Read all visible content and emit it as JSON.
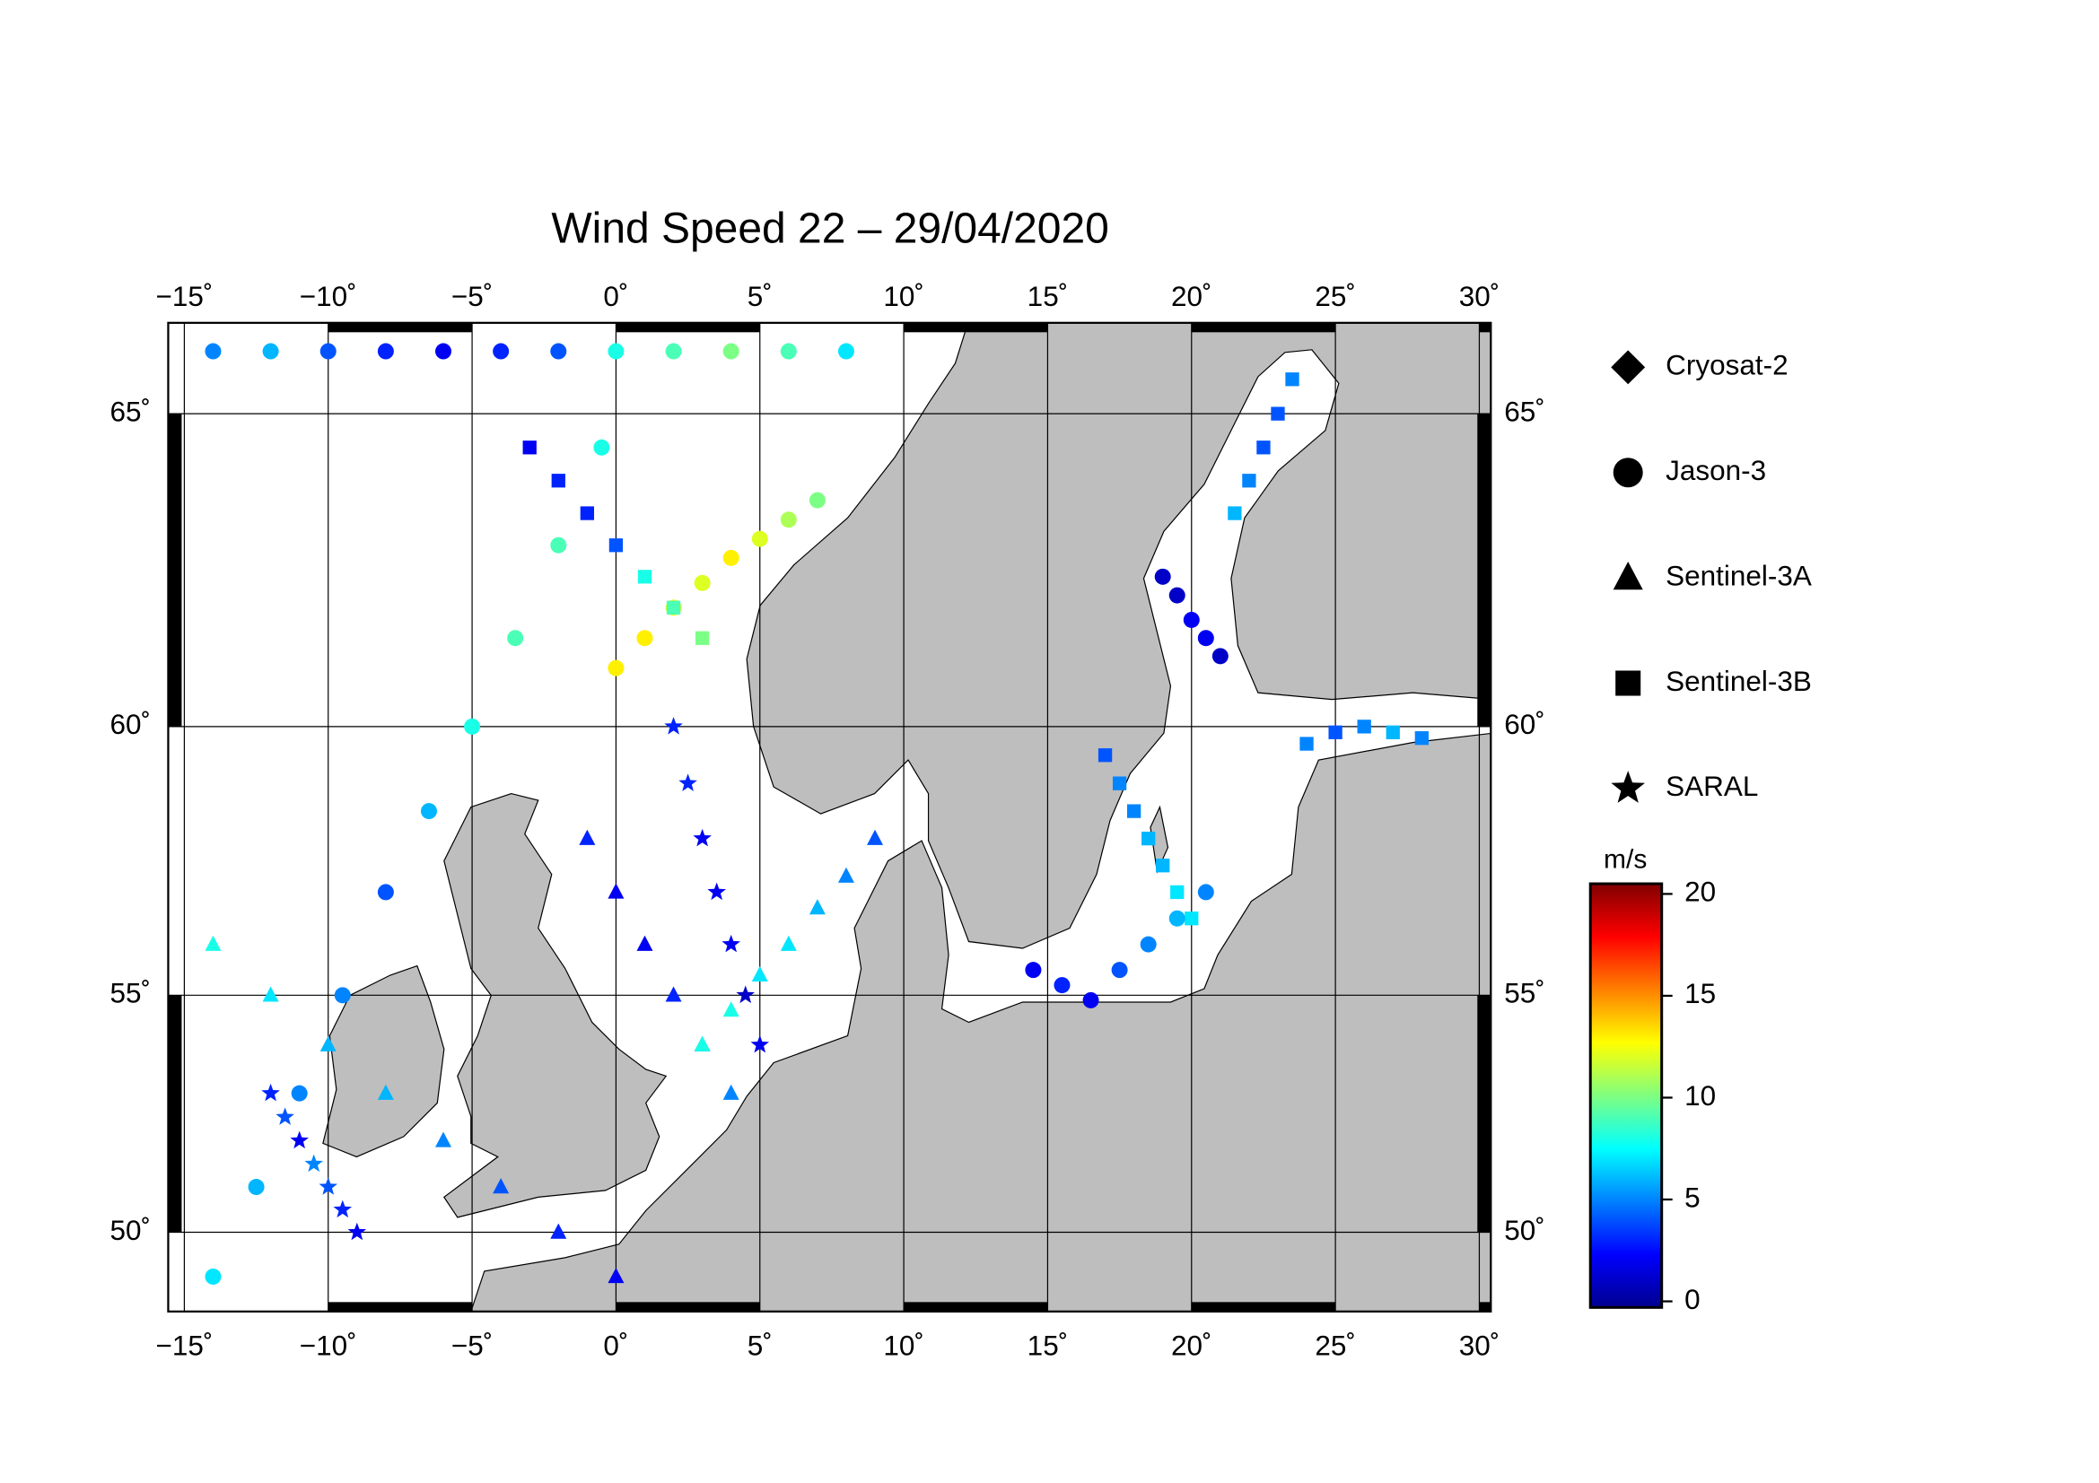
{
  "chart_data": {
    "type": "map",
    "title": "Wind Speed 22 – 29/04/2020",
    "xlim": [
      -15.56,
      30.4
    ],
    "ylim": [
      48.2,
      66.3
    ],
    "xticks": [
      {
        "value": -15,
        "label": "−15˚"
      },
      {
        "value": -10,
        "label": "−10˚"
      },
      {
        "value": -5,
        "label": "−5˚"
      },
      {
        "value": 0,
        "label": "0˚"
      },
      {
        "value": 5,
        "label": "5˚"
      },
      {
        "value": 10,
        "label": "10˚"
      },
      {
        "value": 15,
        "label": "15˚"
      },
      {
        "value": 20,
        "label": "20˚"
      },
      {
        "value": 25,
        "label": "25˚"
      },
      {
        "value": 30,
        "label": "30˚"
      }
    ],
    "yticks": [
      {
        "value": 50,
        "label": "50˚"
      },
      {
        "value": 55,
        "label": "55˚"
      },
      {
        "value": 60,
        "label": "60˚"
      },
      {
        "value": 65,
        "label": "65˚"
      }
    ],
    "grid": true,
    "series": [
      {
        "name": "Cryosat-2",
        "marker": "diamond"
      },
      {
        "name": "Jason-3",
        "marker": "circle"
      },
      {
        "name": "Sentinel-3A",
        "marker": "triangle"
      },
      {
        "name": "Sentinel-3B",
        "marker": "square"
      },
      {
        "name": "SARAL",
        "marker": "star"
      }
    ],
    "colorbar": {
      "label": "m/s",
      "ylim": [
        -0.3,
        20.5
      ],
      "yticks": [
        0,
        5,
        10,
        15,
        20
      ],
      "colormap": [
        "#00008f",
        "#0000ff",
        "#0080ff",
        "#00ffff",
        "#80ff80",
        "#ffff00",
        "#ff8000",
        "#ff0000",
        "#800000"
      ]
    },
    "tracks": [
      {
        "series": 1,
        "lon": [
          -14,
          -12.5,
          -11,
          -9.5,
          -8,
          -6.5,
          -5,
          -3.5,
          -2,
          -0.5
        ],
        "lat": [
          49,
          51,
          53,
          55,
          57,
          58.5,
          60,
          61.5,
          63,
          64.5
        ],
        "values": [
          7,
          6,
          5,
          5,
          4,
          6,
          8,
          9,
          9,
          8
        ]
      },
      {
        "series": 1,
        "lon": [
          0,
          1,
          2,
          3,
          4,
          5,
          6,
          7
        ],
        "lat": [
          61,
          61.5,
          62,
          62.4,
          62.8,
          63.1,
          63.4,
          63.7
        ],
        "values": [
          13,
          13,
          12,
          12,
          13,
          12,
          11,
          10
        ]
      },
      {
        "series": 1,
        "lon": [
          -14,
          -12,
          -10,
          -8,
          -6,
          -4,
          -2,
          0,
          2,
          4,
          6,
          8
        ],
        "lat": [
          65.9,
          65.9,
          65.9,
          65.9,
          65.9,
          65.9,
          65.9,
          65.9,
          65.9,
          65.9,
          65.9,
          65.9
        ],
        "values": [
          5,
          6,
          4,
          3,
          2,
          3,
          4,
          8,
          9,
          10,
          9,
          7
        ]
      },
      {
        "series": 2,
        "lon": [
          -14,
          -12,
          -10,
          -8,
          -6,
          -4,
          -2,
          0
        ],
        "lat": [
          56,
          55,
          54,
          53,
          52,
          51,
          50,
          49
        ],
        "values": [
          8,
          7,
          6,
          6,
          5,
          4,
          3,
          2
        ]
      },
      {
        "series": 2,
        "lon": [
          -1,
          0,
          1,
          2,
          3,
          4
        ],
        "lat": [
          58,
          57,
          56,
          55,
          54,
          53
        ],
        "values": [
          3,
          2,
          2,
          3,
          4,
          5
        ]
      },
      {
        "series": 3,
        "lon": [
          17,
          17.5,
          18,
          18.5,
          19,
          19.5,
          20
        ],
        "lat": [
          59.5,
          59,
          58.5,
          58,
          57.5,
          57,
          56.5
        ],
        "values": [
          4,
          5,
          5,
          6,
          6,
          7,
          7
        ]
      },
      {
        "series": 4,
        "lon": [
          2,
          2.5,
          3,
          3.5,
          4,
          4.5,
          5
        ],
        "lat": [
          60,
          59,
          58,
          57,
          56,
          55,
          54
        ],
        "values": [
          3,
          3,
          2,
          2,
          2,
          1,
          2
        ]
      },
      {
        "series": 1,
        "lon": [
          19,
          19.5,
          20,
          20.5,
          21
        ],
        "lat": [
          62.5,
          62.2,
          61.8,
          61.5,
          61.2
        ],
        "values": [
          1,
          1,
          2,
          2,
          1
        ]
      },
      {
        "series": 3,
        "lon": [
          21.5,
          22,
          22.5,
          23,
          23.5
        ],
        "lat": [
          63.5,
          64,
          64.5,
          65,
          65.5
        ],
        "values": [
          6,
          5,
          4,
          4,
          5
        ]
      },
      {
        "series": 1,
        "lon": [
          14.5,
          15.5,
          16.5,
          17.5,
          18.5,
          19.5,
          20.5
        ],
        "lat": [
          55.5,
          55.2,
          54.9,
          55.5,
          56,
          56.5,
          57
        ],
        "values": [
          2,
          3,
          2,
          4,
          5,
          6,
          5
        ]
      },
      {
        "series": 2,
        "lon": [
          3,
          4,
          5,
          6,
          7,
          8,
          9
        ],
        "lat": [
          54,
          54.7,
          55.4,
          56,
          56.7,
          57.3,
          58
        ],
        "values": [
          8,
          8,
          7,
          7,
          6,
          5,
          4
        ]
      },
      {
        "series": 4,
        "lon": [
          -12,
          -11.5,
          -11,
          -10.5,
          -10,
          -9.5,
          -9
        ],
        "lat": [
          53,
          52.5,
          52,
          51.5,
          51,
          50.5,
          50
        ],
        "values": [
          3,
          4,
          2,
          5,
          4,
          3,
          2
        ]
      },
      {
        "series": 3,
        "lon": [
          -3,
          -2,
          -1,
          0,
          1,
          2,
          3
        ],
        "lat": [
          64.5,
          64,
          63.5,
          63,
          62.5,
          62,
          61.5
        ],
        "values": [
          2,
          3,
          3,
          4,
          8,
          9,
          10
        ]
      },
      {
        "series": 3,
        "lon": [
          24,
          25,
          26,
          27,
          28
        ],
        "lat": [
          59.7,
          59.9,
          60,
          59.9,
          59.8
        ],
        "values": [
          5,
          4,
          5,
          6,
          5
        ]
      }
    ]
  }
}
